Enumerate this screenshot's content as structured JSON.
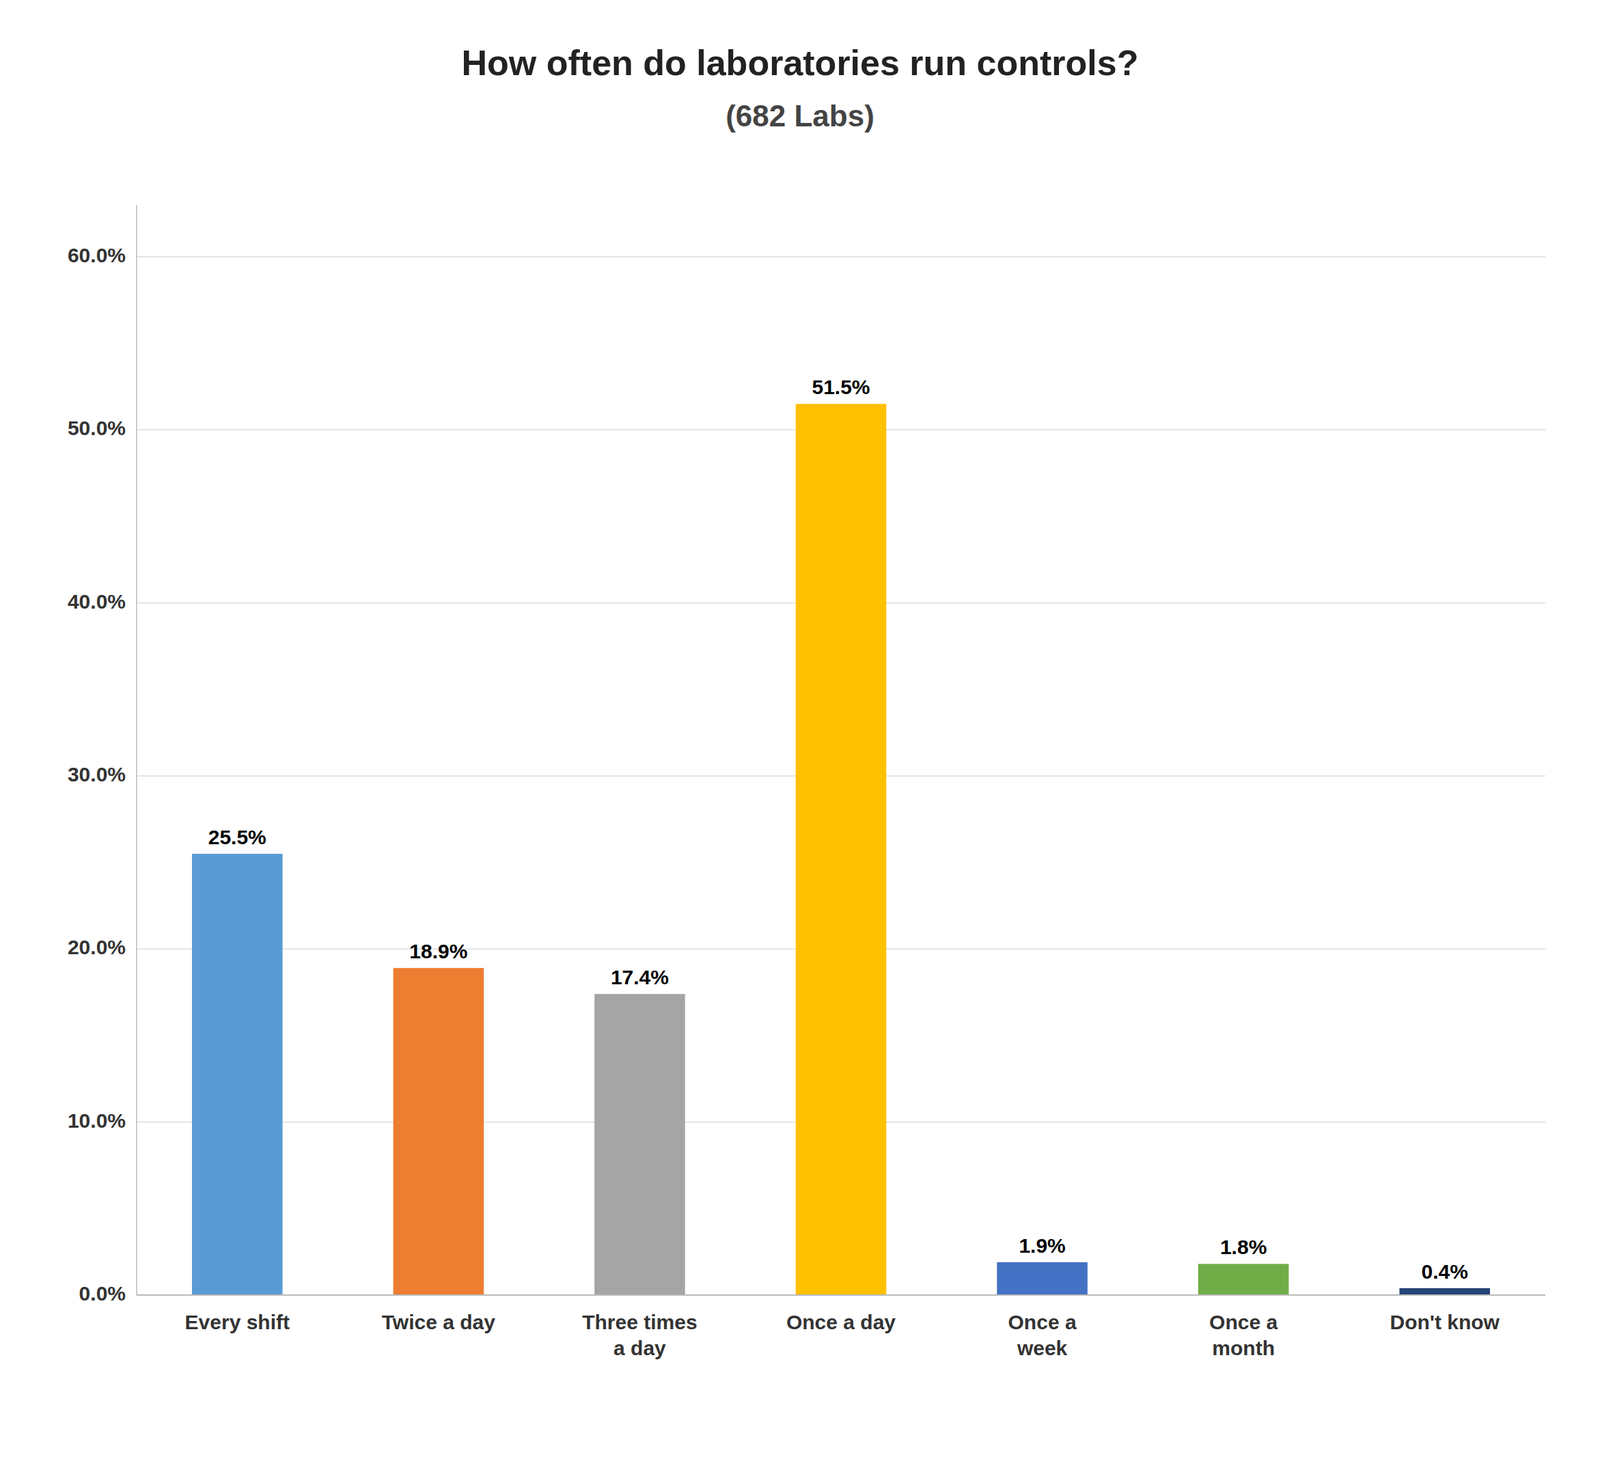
{
  "chart_data": {
    "type": "bar",
    "title": "How often do laboratories run controls?",
    "subtitle": "(682 Labs)",
    "categories": [
      "Every shift",
      "Twice a day",
      "Three times\na day",
      "Once a day",
      "Once a\nweek",
      "Once a\nmonth",
      "Don't know"
    ],
    "values": [
      25.5,
      18.9,
      17.4,
      51.5,
      1.9,
      1.8,
      0.4
    ],
    "value_labels": [
      "25.5%",
      "18.9%",
      "17.4%",
      "51.5%",
      "1.9%",
      "1.8%",
      "0.4%"
    ],
    "colors": [
      "#5B9BD5",
      "#ED7D31",
      "#A5A5A5",
      "#FFC000",
      "#4472C4",
      "#70AD47",
      "#264478"
    ],
    "ylim": [
      0,
      63
    ],
    "yticks": [
      {
        "value": 0,
        "label": "0.0%"
      },
      {
        "value": 10,
        "label": "10.0%"
      },
      {
        "value": 20,
        "label": "20.0%"
      },
      {
        "value": 30,
        "label": "30.0%"
      },
      {
        "value": 40,
        "label": "40.0%"
      },
      {
        "value": 50,
        "label": "50.0%"
      },
      {
        "value": 60,
        "label": "60.0%"
      }
    ],
    "grid": true,
    "data_labels": true
  }
}
